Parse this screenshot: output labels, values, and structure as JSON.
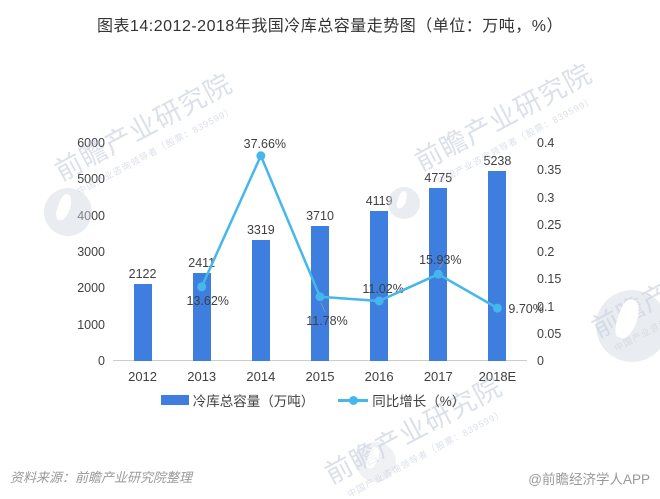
{
  "title": "图表14:2012-2018年我国冷库总容量走势图（单位：万吨，%）",
  "legend": {
    "position": "bottom",
    "items": [
      {
        "label": "冷库总容量（万吨）",
        "type": "bar"
      },
      {
        "label": "同比增长（%）",
        "type": "line"
      }
    ]
  },
  "footer": {
    "source": "资料来源：前瞻产业研究院整理",
    "attribution": "@前瞻经济学人APP"
  },
  "watermark": {
    "text": "前瞻产业研究院",
    "subtext": "中国产业咨询领导者（股票：839599）"
  },
  "colors": {
    "bar": "#3E7EDE",
    "line": "#45B7EA",
    "title_text": "#333333",
    "label_text": "#404040",
    "axis_line": "#cccccc",
    "leader_line": "#999999",
    "footer_text": "#999999"
  },
  "chart_data": {
    "type": "bar",
    "subtype": "bar-line-combo",
    "title": "图表14:2012-2018年我国冷库总容量走势图（单位：万吨，%）",
    "xlabel": "",
    "ylabel_left": "冷库总容量（万吨）",
    "ylabel_right": "同比增长（%）",
    "grid": false,
    "legend_position": "bottom",
    "categories": [
      "2012",
      "2013",
      "2014",
      "2015",
      "2016",
      "2017",
      "2018E"
    ],
    "left_axis": {
      "min": 0,
      "max": 6000,
      "ticks": [
        "0",
        "1000",
        "2000",
        "3000",
        "4000",
        "5000",
        "6000"
      ]
    },
    "right_axis": {
      "min": 0,
      "max": 0.4,
      "ticks": [
        "0",
        "0.05",
        "0.1",
        "0.15",
        "0.2",
        "0.25",
        "0.3",
        "0.35",
        "0.4"
      ]
    },
    "series": [
      {
        "name": "冷库总容量（万吨）",
        "type": "bar",
        "axis": "left",
        "values": [
          2122,
          2411,
          3319,
          3710,
          4119,
          4775,
          5238
        ],
        "labels": [
          "2122",
          "2411",
          "3319",
          "3710",
          "4119",
          "4775",
          "5238"
        ]
      },
      {
        "name": "同比增长（%）",
        "type": "line",
        "axis": "right",
        "values": [
          null,
          0.1362,
          0.3766,
          0.1178,
          0.1102,
          0.1593,
          0.097
        ],
        "labels": [
          null,
          "13.62%",
          "37.66%",
          "11.78%",
          "11.02%",
          "15.93%",
          "9.70%"
        ],
        "label_pos": [
          null,
          "below",
          "above",
          "below-leader",
          "above",
          "above-leader",
          "right"
        ]
      }
    ]
  }
}
